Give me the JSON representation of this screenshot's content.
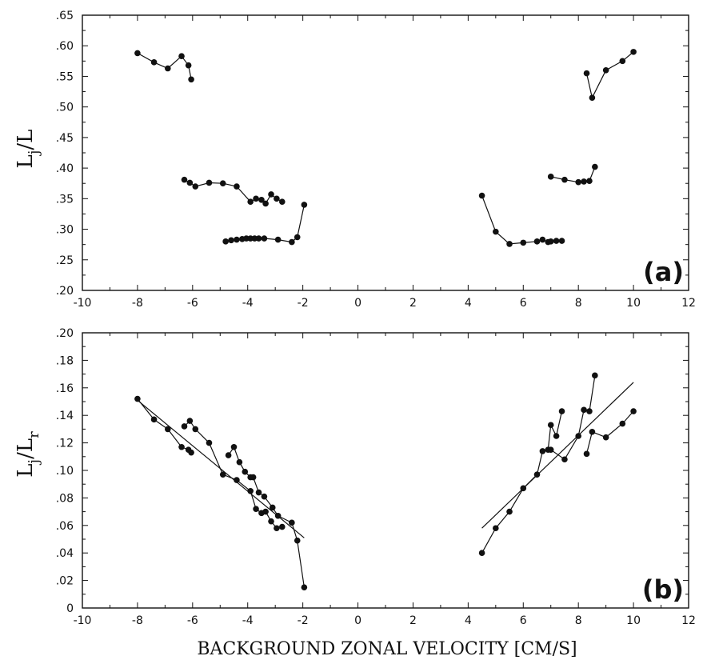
{
  "chart_data": [
    {
      "type": "line",
      "panel_label": "(a)",
      "ylabel_main": "L",
      "ylabel_sub": "j",
      "ylabel_tail": "/L",
      "xlim": [
        -10,
        12
      ],
      "ylim": [
        0.2,
        0.65
      ],
      "xticks": [
        -10,
        -8,
        -6,
        -4,
        -2,
        0,
        2,
        4,
        6,
        8,
        10,
        12
      ],
      "xtick_labels": [
        "-10",
        "-8",
        "-6",
        "-4",
        "-2",
        "0",
        "2",
        "4",
        "6",
        "8",
        "10",
        "12"
      ],
      "yticks": [
        0.2,
        0.25,
        0.3,
        0.35,
        0.4,
        0.45,
        0.5,
        0.55,
        0.6,
        0.65
      ],
      "ytick_labels": [
        ".20",
        ".25",
        ".30",
        ".35",
        ".40",
        ".45",
        ".50",
        ".55",
        ".60",
        ".65"
      ],
      "series": [
        {
          "x": [
            -8.0,
            -7.4,
            -6.9,
            -6.4,
            -6.15,
            -6.05
          ],
          "y": [
            0.588,
            0.573,
            0.563,
            0.583,
            0.568,
            0.545
          ]
        },
        {
          "x": [
            -6.3,
            -6.1,
            -5.9,
            -5.4,
            -4.9,
            -4.4,
            -3.9,
            -3.7,
            -3.5,
            -3.35,
            -3.15,
            -2.95,
            -2.75
          ],
          "y": [
            0.381,
            0.376,
            0.37,
            0.376,
            0.375,
            0.37,
            0.345,
            0.35,
            0.348,
            0.342,
            0.357,
            0.35,
            0.345
          ]
        },
        {
          "x": [
            -4.8,
            -4.6,
            -4.4,
            -4.2,
            -4.05,
            -3.9,
            -3.75,
            -3.6,
            -3.4,
            -2.9,
            -2.4,
            -2.2,
            -1.95
          ],
          "y": [
            0.28,
            0.282,
            0.283,
            0.284,
            0.285,
            0.285,
            0.285,
            0.285,
            0.285,
            0.283,
            0.279,
            0.287,
            0.34
          ]
        },
        {
          "x": [
            4.5,
            5.0,
            5.5,
            6.0,
            6.5,
            6.7,
            6.9,
            7.0,
            7.2,
            7.4
          ],
          "y": [
            0.355,
            0.296,
            0.276,
            0.278,
            0.28,
            0.283,
            0.279,
            0.28,
            0.281,
            0.281
          ]
        },
        {
          "x": [
            7.0,
            7.5,
            8.0,
            8.2,
            8.4,
            8.6
          ],
          "y": [
            0.386,
            0.381,
            0.377,
            0.378,
            0.379,
            0.402
          ]
        },
        {
          "x": [
            8.3,
            8.5,
            9.0,
            9.6,
            10.0
          ],
          "y": [
            0.555,
            0.515,
            0.56,
            0.575,
            0.59
          ]
        }
      ]
    },
    {
      "type": "scatter",
      "panel_label": "(b)",
      "ylabel_main": "L",
      "ylabel_sub": "j",
      "ylabel_tail": "/L",
      "ylabel_sub2": "r",
      "xlabel": "BACKGROUND ZONAL VELOCITY [CM/S]",
      "xlim": [
        -10,
        12
      ],
      "ylim": [
        0,
        0.2
      ],
      "xticks": [
        -10,
        -8,
        -6,
        -4,
        -2,
        0,
        2,
        4,
        6,
        8,
        10,
        12
      ],
      "xtick_labels": [
        "-10",
        "-8",
        "-6",
        "-4",
        "-2",
        "0",
        "2",
        "4",
        "6",
        "8",
        "10",
        "12"
      ],
      "yticks": [
        0,
        0.02,
        0.04,
        0.06,
        0.08,
        0.1,
        0.12,
        0.14,
        0.16,
        0.18,
        0.2
      ],
      "ytick_labels": [
        "0",
        ".02",
        ".04",
        ".06",
        ".08",
        ".10",
        ".12",
        ".14",
        ".16",
        ".18",
        ".20"
      ],
      "series": [
        {
          "x": [
            -8.0,
            -7.4,
            -6.9,
            -6.4,
            -6.15,
            -6.05
          ],
          "y": [
            0.152,
            0.137,
            0.13,
            0.117,
            0.115,
            0.113
          ]
        },
        {
          "x": [
            -6.3,
            -6.1,
            -5.9,
            -5.4,
            -4.9,
            -4.4,
            -3.9,
            -3.7,
            -3.5,
            -3.35,
            -3.15,
            -2.95,
            -2.75
          ],
          "y": [
            0.132,
            0.136,
            0.13,
            0.12,
            0.097,
            0.093,
            0.085,
            0.072,
            0.069,
            0.07,
            0.063,
            0.058,
            0.059
          ]
        },
        {
          "x": [
            -4.7,
            -4.5,
            -4.3,
            -4.1,
            -3.9,
            -3.8,
            -3.6,
            -3.4,
            -3.1,
            -2.9,
            -2.4,
            -2.2,
            -1.95
          ],
          "y": [
            0.111,
            0.117,
            0.106,
            0.099,
            0.095,
            0.095,
            0.084,
            0.081,
            0.073,
            0.067,
            0.062,
            0.049,
            0.015
          ]
        },
        {
          "x": [
            4.5,
            5.0,
            5.5,
            6.0,
            6.5,
            6.7,
            6.9,
            7.0,
            7.2,
            7.4
          ],
          "y": [
            0.04,
            0.058,
            0.07,
            0.087,
            0.097,
            0.114,
            0.115,
            0.133,
            0.125,
            0.143
          ]
        },
        {
          "x": [
            7.0,
            7.5,
            8.0,
            8.2,
            8.4,
            8.6
          ],
          "y": [
            0.115,
            0.108,
            0.125,
            0.144,
            0.143,
            0.169
          ]
        },
        {
          "x": [
            8.3,
            8.5,
            9.0,
            9.6,
            10.0
          ],
          "y": [
            0.112,
            0.128,
            0.124,
            0.134,
            0.143
          ]
        }
      ],
      "fits": [
        {
          "x": [
            -8.0,
            -1.95
          ],
          "y": [
            0.151,
            0.051
          ]
        },
        {
          "x": [
            4.5,
            10.0
          ],
          "y": [
            0.058,
            0.164
          ]
        }
      ]
    }
  ]
}
